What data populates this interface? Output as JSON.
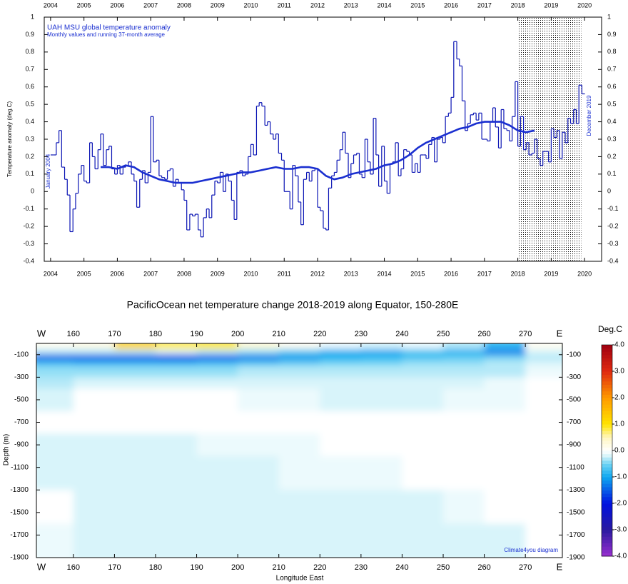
{
  "chart_data": [
    {
      "type": "line",
      "title": "UAH MSU global temperature anomaly",
      "subtitle": "Monthly values and running 37-month average",
      "ylabel": "Temperature anomaly (deg.C)",
      "annotations": [
        "January 2004",
        "December 2019"
      ],
      "xlim": [
        2003.81,
        2020.51
      ],
      "ylim": [
        -0.4,
        1
      ],
      "xticks": [
        2004,
        2005,
        2006,
        2007,
        2008,
        2009,
        2010,
        2011,
        2012,
        2013,
        2014,
        2015,
        2016,
        2017,
        2018,
        2019,
        2020
      ],
      "yticks": [
        -0.4,
        -0.3,
        -0.2,
        -0.1,
        0,
        0.1,
        0.2,
        0.3,
        0.4,
        0.5,
        0.6,
        0.7,
        0.8,
        0.9,
        1
      ],
      "shaded_range": [
        2018,
        2019.9
      ],
      "series": [
        {
          "style": "step",
          "color": "#0a14b4",
          "x": [
            2004,
            2004.08,
            2004.17,
            2004.25,
            2004.33,
            2004.42,
            2004.5,
            2004.58,
            2004.67,
            2004.75,
            2004.83,
            2004.92,
            2005,
            2005.08,
            2005.17,
            2005.25,
            2005.33,
            2005.42,
            2005.5,
            2005.58,
            2005.67,
            2005.75,
            2005.83,
            2005.92,
            2006,
            2006.08,
            2006.17,
            2006.25,
            2006.33,
            2006.42,
            2006.5,
            2006.58,
            2006.67,
            2006.75,
            2006.83,
            2006.92,
            2007,
            2007.08,
            2007.17,
            2007.25,
            2007.33,
            2007.42,
            2007.5,
            2007.58,
            2007.67,
            2007.75,
            2007.83,
            2007.92,
            2008,
            2008.08,
            2008.17,
            2008.25,
            2008.33,
            2008.42,
            2008.5,
            2008.58,
            2008.67,
            2008.75,
            2008.83,
            2008.92,
            2009,
            2009.08,
            2009.17,
            2009.25,
            2009.33,
            2009.42,
            2009.5,
            2009.58,
            2009.67,
            2009.75,
            2009.83,
            2009.92,
            2010,
            2010.08,
            2010.17,
            2010.25,
            2010.33,
            2010.42,
            2010.5,
            2010.58,
            2010.67,
            2010.75,
            2010.83,
            2010.92,
            2011,
            2011.08,
            2011.17,
            2011.25,
            2011.33,
            2011.42,
            2011.5,
            2011.58,
            2011.67,
            2011.75,
            2011.83,
            2011.92,
            2012,
            2012.08,
            2012.17,
            2012.25,
            2012.33,
            2012.42,
            2012.5,
            2012.58,
            2012.67,
            2012.75,
            2012.83,
            2012.92,
            2013,
            2013.08,
            2013.17,
            2013.25,
            2013.33,
            2013.42,
            2013.5,
            2013.58,
            2013.67,
            2013.75,
            2013.83,
            2013.92,
            2014,
            2014.08,
            2014.17,
            2014.25,
            2014.33,
            2014.42,
            2014.5,
            2014.58,
            2014.67,
            2014.75,
            2014.83,
            2014.92,
            2015,
            2015.08,
            2015.17,
            2015.25,
            2015.33,
            2015.42,
            2015.5,
            2015.58,
            2015.67,
            2015.75,
            2015.83,
            2015.92,
            2016,
            2016.08,
            2016.17,
            2016.25,
            2016.33,
            2016.42,
            2016.5,
            2016.58,
            2016.67,
            2016.75,
            2016.83,
            2016.92,
            2017,
            2017.08,
            2017.17,
            2017.25,
            2017.33,
            2017.42,
            2017.5,
            2017.58,
            2017.67,
            2017.75,
            2017.83,
            2017.92,
            2018,
            2018.08,
            2018.17,
            2018.25,
            2018.33,
            2018.42,
            2018.5,
            2018.58,
            2018.67,
            2018.75,
            2018.83,
            2018.92,
            2019,
            2019.08,
            2019.17,
            2019.25,
            2019.33,
            2019.42,
            2019.5,
            2019.58,
            2019.67,
            2019.75,
            2019.83,
            2019.92
          ],
          "values": [
            0.21,
            0.21,
            0.28,
            0.35,
            0.14,
            0.07,
            -0.02,
            -0.23,
            -0.1,
            -0.01,
            0.1,
            0.15,
            0.06,
            0.05,
            0.28,
            0.2,
            0.13,
            0.24,
            0.33,
            0.15,
            0.24,
            0.26,
            0.13,
            0.1,
            0.15,
            0.1,
            0.14,
            0.15,
            0.17,
            0.1,
            0.06,
            -0.09,
            0.07,
            0.12,
            0.05,
            0.11,
            0.43,
            0.17,
            0.18,
            0.09,
            0.08,
            0.07,
            0.12,
            0.13,
            0.03,
            0.07,
            0.05,
            0.01,
            -0.05,
            -0.22,
            -0.13,
            -0.14,
            -0.13,
            -0.22,
            -0.26,
            -0.15,
            -0.1,
            -0.15,
            -0.02,
            0.06,
            0.05,
            0.11,
            0.0,
            0.1,
            0.06,
            -0.05,
            -0.16,
            0.11,
            0.12,
            0.09,
            0.1,
            0.2,
            0.27,
            0.21,
            0.49,
            0.51,
            0.49,
            0.38,
            0.4,
            0.33,
            0.3,
            0.33,
            0.22,
            0.18,
            0.0,
            0.0,
            -0.1,
            0.15,
            0.09,
            -0.06,
            -0.19,
            0.07,
            0.11,
            0.06,
            0.12,
            0.13,
            -0.09,
            -0.11,
            -0.21,
            -0.22,
            0.02,
            0.09,
            0.11,
            0.18,
            0.24,
            0.34,
            0.22,
            0.08,
            0.16,
            0.21,
            0.22,
            0.1,
            0.08,
            0.3,
            0.17,
            0.1,
            0.42,
            0.21,
            0.03,
            0.26,
            0.06,
            -0.01,
            0.16,
            0.17,
            0.28,
            0.09,
            0.13,
            0.24,
            0.23,
            0.21,
            0.11,
            0.16,
            0.11,
            0.21,
            0.21,
            0.19,
            0.27,
            0.31,
            0.17,
            0.3,
            0.31,
            0.28,
            0.43,
            0.45,
            0.54,
            0.86,
            0.76,
            0.72,
            0.52,
            0.35,
            0.39,
            0.44,
            0.45,
            0.41,
            0.45,
            0.3,
            0.3,
            0.29,
            0.4,
            0.48,
            0.37,
            0.25,
            0.47,
            0.36,
            0.35,
            0.29,
            0.43,
            0.63,
            0.26,
            0.43,
            0.24,
            0.28,
            0.21,
            0.22,
            0.3,
            0.19,
            0.15,
            0.23,
            0.23,
            0.17,
            0.36,
            0.31,
            0.35,
            0.19,
            0.34,
            0.28,
            0.42,
            0.39,
            0.47,
            0.39,
            0.61,
            0.56
          ]
        },
        {
          "style": "smooth",
          "color": "#1a2fd0",
          "x": [
            2005.5,
            2005.75,
            2006,
            2006.25,
            2006.5,
            2006.75,
            2007,
            2007.25,
            2007.5,
            2007.75,
            2008,
            2008.25,
            2008.5,
            2008.75,
            2009,
            2009.25,
            2009.5,
            2009.75,
            2010,
            2010.25,
            2010.5,
            2010.75,
            2011,
            2011.25,
            2011.5,
            2011.75,
            2012,
            2012.25,
            2012.5,
            2012.75,
            2013,
            2013.25,
            2013.5,
            2013.75,
            2014,
            2014.25,
            2014.5,
            2014.75,
            2015,
            2015.25,
            2015.5,
            2015.75,
            2016,
            2016.25,
            2016.5,
            2016.75,
            2017,
            2017.25,
            2017.5,
            2017.75,
            2018,
            2018.25,
            2018.5
          ],
          "values": [
            0.14,
            0.14,
            0.13,
            0.15,
            0.14,
            0.11,
            0.09,
            0.07,
            0.06,
            0.05,
            0.05,
            0.05,
            0.06,
            0.07,
            0.08,
            0.09,
            0.1,
            0.11,
            0.11,
            0.12,
            0.13,
            0.14,
            0.13,
            0.13,
            0.14,
            0.14,
            0.13,
            0.09,
            0.07,
            0.08,
            0.1,
            0.11,
            0.12,
            0.13,
            0.15,
            0.16,
            0.18,
            0.21,
            0.25,
            0.28,
            0.3,
            0.32,
            0.34,
            0.36,
            0.37,
            0.39,
            0.4,
            0.4,
            0.4,
            0.38,
            0.35,
            0.34,
            0.35
          ]
        }
      ]
    },
    {
      "type": "heatmap",
      "title": "PacificOcean net temperature change 2018-2019 along Equator, 150-280E",
      "xlabel": "Longitude East",
      "ylabel": "Depth (m)",
      "edge_labels": [
        "W",
        "E"
      ],
      "credit": "Climate4you diagram",
      "colorbar_title": "Deg.C",
      "xlim": [
        151,
        279
      ],
      "ylim": [
        -1900,
        0
      ],
      "xticks": [
        160,
        170,
        180,
        190,
        200,
        210,
        220,
        230,
        240,
        250,
        260,
        270
      ],
      "yticks": [
        -100,
        -300,
        -500,
        -700,
        -900,
        -1100,
        -1300,
        -1500,
        -1700,
        -1900
      ],
      "clim": [
        -4,
        4
      ],
      "cticks": [
        {
          "value": 4,
          "label": "4.0"
        },
        {
          "value": 3,
          "label": "3.0"
        },
        {
          "value": 2,
          "label": "2.0"
        },
        {
          "value": 1,
          "label": "1.0"
        },
        {
          "value": 0,
          "label": "0.0"
        },
        {
          "value": -1,
          "label": "-1.0"
        },
        {
          "value": -2,
          "label": "-2.0"
        },
        {
          "value": -3,
          "label": "-3.0"
        },
        {
          "value": -4,
          "label": "-4.0"
        }
      ],
      "colorscale": [
        {
          "value": -4,
          "color": "#9a30d0"
        },
        {
          "value": -3,
          "color": "#2a1aa0"
        },
        {
          "value": -2,
          "color": "#0010e0"
        },
        {
          "value": -1,
          "color": "#10a8f0"
        },
        {
          "value": -0.5,
          "color": "#70d4f4"
        },
        {
          "value": -0.2,
          "color": "#d8f4fa"
        },
        {
          "value": 0,
          "color": "#ffffff"
        },
        {
          "value": 0.5,
          "color": "#fff6c0"
        },
        {
          "value": 1,
          "color": "#ffe400"
        },
        {
          "value": 2,
          "color": "#ff9a00"
        },
        {
          "value": 3,
          "color": "#e02a10"
        },
        {
          "value": 4,
          "color": "#a00010"
        }
      ],
      "x_edges": [
        151,
        160,
        170,
        180,
        190,
        200,
        210,
        220,
        230,
        240,
        250,
        260,
        270,
        279
      ],
      "y_edges": [
        0,
        -50,
        -100,
        -150,
        -200,
        -300,
        -400,
        -600,
        -800,
        -1000,
        -1300,
        -1600,
        -1900
      ],
      "z": [
        [
          0.1,
          0.2,
          1.2,
          0.8,
          0.9,
          0.3,
          0.1,
          -0.1,
          -0.2,
          -0.1,
          -0.3,
          -0.8,
          0.1
        ],
        [
          -0.3,
          -0.3,
          -0.3,
          -0.2,
          -0.3,
          -0.4,
          -0.6,
          -0.9,
          -1.0,
          -0.7,
          -0.9,
          -1.3,
          -0.2
        ],
        [
          -1.5,
          -1.5,
          -1.5,
          -1.6,
          -1.5,
          -1.3,
          -1.1,
          -0.9,
          -0.8,
          -0.7,
          -0.6,
          -0.5,
          -0.3
        ],
        [
          -0.8,
          -0.9,
          -0.9,
          -0.9,
          -0.8,
          -0.7,
          -0.6,
          -0.5,
          -0.5,
          -0.4,
          -0.4,
          -0.3,
          -0.2
        ],
        [
          -0.4,
          -0.4,
          -0.4,
          -0.4,
          -0.4,
          -0.3,
          -0.3,
          -0.3,
          -0.3,
          -0.3,
          -0.3,
          -0.3,
          -0.1
        ],
        [
          -0.3,
          -0.2,
          -0.2,
          -0.2,
          -0.2,
          -0.2,
          -0.2,
          -0.2,
          -0.2,
          -0.2,
          -0.2,
          -0.1,
          0
        ],
        [
          -0.2,
          0,
          0,
          0,
          0,
          -0.1,
          -0.1,
          -0.2,
          -0.2,
          -0.2,
          -0.1,
          -0.1,
          0
        ],
        [
          0,
          0,
          0,
          0,
          0,
          0,
          0,
          0,
          0,
          0,
          0,
          0,
          0
        ],
        [
          -0.2,
          -0.2,
          -0.2,
          -0.2,
          -0.1,
          -0.1,
          -0.1,
          0,
          0,
          0,
          0,
          0,
          0
        ],
        [
          -0.2,
          -0.2,
          -0.2,
          -0.2,
          -0.2,
          -0.2,
          -0.1,
          -0.1,
          -0.1,
          0,
          0,
          0,
          0
        ],
        [
          0,
          -0.2,
          -0.2,
          -0.2,
          -0.2,
          -0.2,
          -0.2,
          -0.2,
          -0.2,
          -0.2,
          -0.1,
          0,
          0
        ],
        [
          -0.1,
          -0.2,
          -0.2,
          -0.2,
          -0.2,
          -0.2,
          -0.2,
          -0.2,
          -0.2,
          -0.2,
          -0.2,
          -0.2,
          0
        ]
      ]
    }
  ]
}
